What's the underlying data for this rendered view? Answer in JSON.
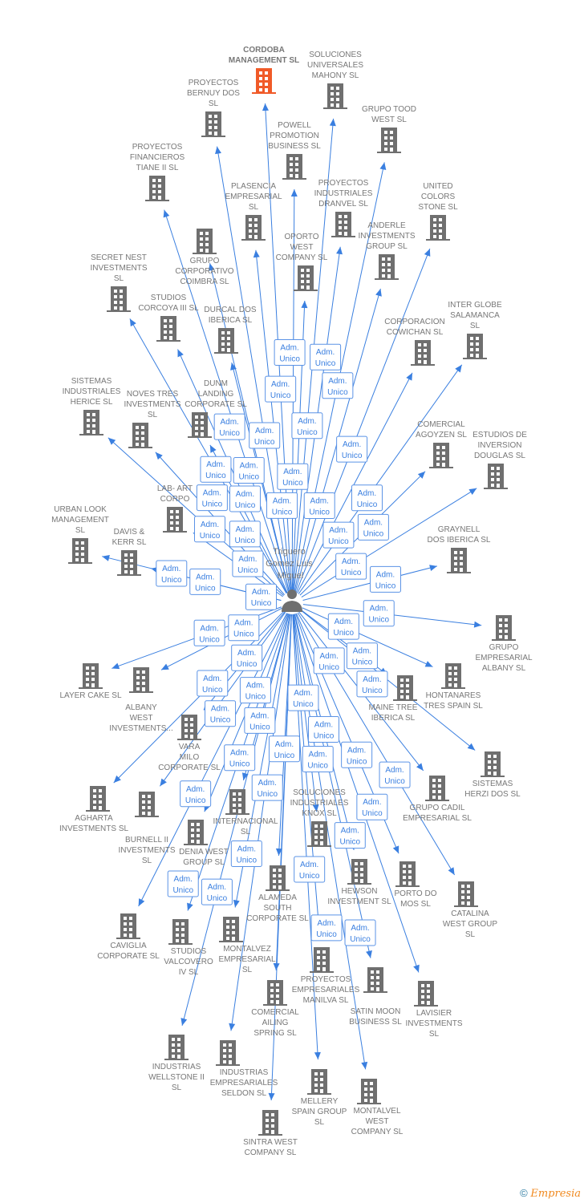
{
  "center": {
    "lines": [
      "Triguero",
      "Gomez Luis",
      "Miguel"
    ],
    "icon": "person-icon"
  },
  "edge_label": [
    "Adm.",
    "Unico"
  ],
  "colors": {
    "edge": "#3a7fe0",
    "node": "#6f6f6f",
    "highlight": "#f05a28",
    "label": "#777777"
  },
  "nodes": [
    {
      "lines": [
        "CORDOBA",
        "MANAGEMENT SL"
      ],
      "highlight": true
    },
    {
      "lines": [
        "SOLUCIONES",
        "UNIVERSALES",
        "MAHONY  SL"
      ]
    },
    {
      "lines": [
        "PROYECTOS",
        "BERNUY DOS",
        "SL"
      ]
    },
    {
      "lines": [
        "GRUPO TOOD",
        "WEST  SL"
      ]
    },
    {
      "lines": [
        "POWELL",
        "PROMOTION",
        "BUSINESS  SL"
      ]
    },
    {
      "lines": [
        "PROYECTOS",
        "FINANCIEROS",
        "TIANE II  SL"
      ]
    },
    {
      "lines": [
        "PLASENCIA",
        "EMPRESARIAL",
        "SL"
      ]
    },
    {
      "lines": [
        "PROYECTOS",
        "INDUSTRIALES",
        "DRANVEL  SL"
      ]
    },
    {
      "lines": [
        "UNITED",
        "COLORS",
        "STONE SL"
      ]
    },
    {
      "lines": [
        "GRUPO",
        "CORPORATIVO",
        "COIMBRA  SL"
      ]
    },
    {
      "lines": [
        "ANDERLE",
        "INVESTMENTS",
        "GROUP SL"
      ]
    },
    {
      "lines": [
        "OPORTO",
        "WEST",
        "COMPANY  SL"
      ]
    },
    {
      "lines": [
        "SECRET NEST",
        "INVESTMENTS",
        "SL"
      ]
    },
    {
      "lines": [
        "STUDIOS",
        "CORCOYA III  SL"
      ]
    },
    {
      "lines": [
        "DURCAL DOS",
        "IBERICA  SL"
      ]
    },
    {
      "lines": [
        "INTER GLOBE",
        "SALAMANCA",
        "SL"
      ]
    },
    {
      "lines": [
        "CORPORACION",
        "COWICHAN SL"
      ]
    },
    {
      "lines": [
        "SISTEMAS",
        "INDUSTRIALES",
        "HERICE  SL"
      ]
    },
    {
      "lines": [
        "NOVES TRES",
        "INVESTMENTS",
        "SL"
      ]
    },
    {
      "lines": [
        "DUNM",
        "LANDING",
        "CORPORATE SL"
      ]
    },
    {
      "lines": [
        "COMERCIAL",
        "AGOYZEN SL"
      ]
    },
    {
      "lines": [
        "ESTUDIOS DE",
        "INVERSION",
        "DOUGLAS SL"
      ]
    },
    {
      "lines": [
        "LAB- ART",
        "CORPO"
      ]
    },
    {
      "lines": [
        "URBAN LOOK",
        "MANAGEMENT",
        "SL"
      ]
    },
    {
      "lines": [
        "DAVIS &",
        "KERR SL"
      ]
    },
    {
      "lines": [
        "GRAYNELL",
        "DOS IBERICA  SL"
      ]
    },
    {
      "lines": [
        "GRUPO",
        "EMPRESARIAL",
        "ALBANY  SL"
      ]
    },
    {
      "lines": [
        "LAYER CAKE  SL"
      ]
    },
    {
      "lines": [
        "ALBANY",
        "WEST",
        "INVESTMENTS..."
      ]
    },
    {
      "lines": [
        "HONTANARES",
        "TRES SPAIN  SL"
      ]
    },
    {
      "lines": [
        "MAINE TREE",
        "IBERICA  SL"
      ]
    },
    {
      "lines": [
        "SISTEMAS",
        "HERZI DOS SL"
      ]
    },
    {
      "lines": [
        "VARA",
        "MILO",
        "CORPORATE SL"
      ]
    },
    {
      "lines": [
        "AGHARTA",
        "INVESTMENTS SL"
      ]
    },
    {
      "lines": [
        "BURNELL II",
        "INVESTMENTS",
        "SL"
      ]
    },
    {
      "lines": [
        "GRUPO CADIL",
        "EMPRESARIAL SL"
      ]
    },
    {
      "lines": [
        "DENIA WEST",
        "GROUP  SL"
      ]
    },
    {
      "lines": [
        "INTERNACIONAL",
        "SL"
      ]
    },
    {
      "lines": [
        "SOLUCIONES",
        "INDUSTRIALES",
        "KNOX SL"
      ]
    },
    {
      "lines": [
        "HEWSON",
        "INVESTMENT  SL"
      ]
    },
    {
      "lines": [
        "PORTO DO",
        "MOS  SL"
      ]
    },
    {
      "lines": [
        "CATALINA",
        "WEST GROUP",
        "SL"
      ]
    },
    {
      "lines": [
        "ALAMEDA",
        "SOUTH",
        "CORPORATE  SL"
      ]
    },
    {
      "lines": [
        "CAVIGLIA",
        "CORPORATE  SL"
      ]
    },
    {
      "lines": [
        "STUDIOS",
        "VALCOVERO",
        "IV  SL"
      ]
    },
    {
      "lines": [
        "MONTALVEZ",
        "EMPRESARIAL",
        "SL"
      ]
    },
    {
      "lines": [
        "PROYECTOS",
        "EMPRESARIALES",
        "MANILVA SL"
      ]
    },
    {
      "lines": [
        "COMERCIAL",
        "AILING",
        "SPRING  SL"
      ]
    },
    {
      "lines": [
        "SATIN MOON",
        "BUSINESS SL"
      ]
    },
    {
      "lines": [
        "LAVISIER",
        "INVESTMENTS",
        "SL"
      ]
    },
    {
      "lines": [
        "INDUSTRIAS",
        "WELLSTONE II",
        "SL"
      ]
    },
    {
      "lines": [
        "INDUSTRIAS",
        "EMPRESARIALES",
        "SELDON SL"
      ]
    },
    {
      "lines": [
        "MELLERY",
        "SPAIN GROUP",
        "SL"
      ]
    },
    {
      "lines": [
        "MONTALVEL",
        "WEST",
        "COMPANY  SL"
      ]
    },
    {
      "lines": [
        "SINTRA WEST",
        "COMPANY  SL"
      ]
    }
  ],
  "footer": {
    "copyright": "©",
    "brand": "Empresia"
  }
}
